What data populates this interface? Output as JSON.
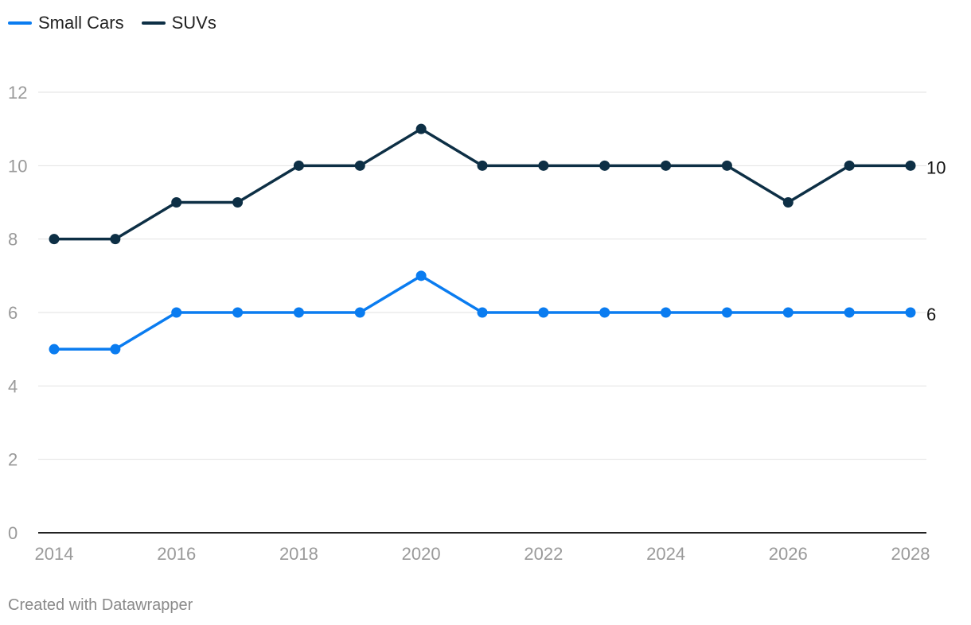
{
  "chart_data": {
    "type": "line",
    "x": [
      2014,
      2015,
      2016,
      2017,
      2018,
      2019,
      2020,
      2021,
      2022,
      2023,
      2024,
      2025,
      2026,
      2027,
      2028
    ],
    "x_ticks": [
      2014,
      2016,
      2018,
      2020,
      2022,
      2024,
      2026,
      2028
    ],
    "y_ticks": [
      0,
      2,
      4,
      6,
      8,
      10,
      12
    ],
    "ylim": [
      0,
      12
    ],
    "xlim": [
      2014,
      2028
    ],
    "grid": true,
    "legend_position": "top-left",
    "series": [
      {
        "name": "Small Cars",
        "color": "#0a7cf0",
        "values": [
          5,
          5,
          6,
          6,
          6,
          6,
          7,
          6,
          6,
          6,
          6,
          6,
          6,
          6,
          6
        ],
        "end_label": "6"
      },
      {
        "name": "SUVs",
        "color": "#0d2f45",
        "values": [
          8,
          8,
          9,
          9,
          10,
          10,
          11,
          10,
          10,
          10,
          10,
          10,
          9,
          10,
          10
        ],
        "end_label": "10"
      }
    ]
  },
  "footer": {
    "credit": "Created with Datawrapper"
  }
}
